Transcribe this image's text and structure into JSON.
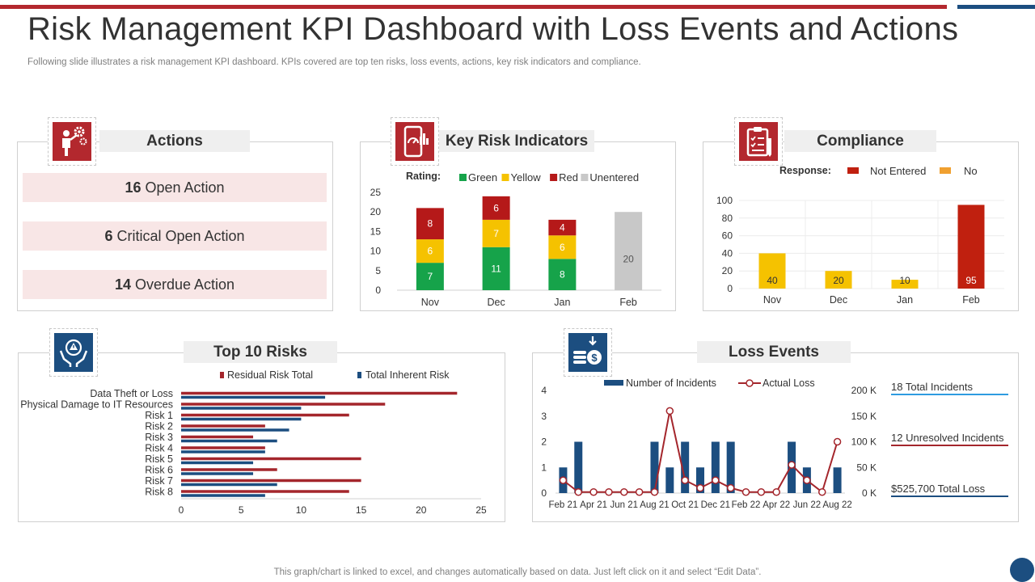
{
  "page": {
    "title": "Risk Management KPI Dashboard with Loss Events and Actions",
    "subtitle": "Following slide illustrates a risk management KPI dashboard. KPIs covered are top ten risks, loss events, actions, key risk indicators and compliance.",
    "footer": "This graph/chart is linked to excel,  and changes automatically based on data. Just left click on it and select “Edit Data”."
  },
  "colors": {
    "red": "#b3282e",
    "navy": "#1c4e80",
    "green": "#16a34a",
    "yellow": "#f5c200",
    "darkred": "#b51919",
    "gray": "#c8c8c8",
    "orange": "#f0a030",
    "pink": "#f8e6e6"
  },
  "actions": {
    "title": "Actions",
    "icon": "person-gear-icon",
    "items": [
      {
        "count": "16",
        "label": "Open Action"
      },
      {
        "count": "6",
        "label": "Critical Open Action"
      },
      {
        "count": "14",
        "label": "Overdue Action"
      }
    ]
  },
  "kri": {
    "title": "Key Risk Indicators",
    "icon": "phone-gauge-icon"
  },
  "compliance": {
    "title": "Compliance",
    "icon": "clipboard-checklist-icon"
  },
  "top_risks": {
    "title": "Top 10 Risks",
    "icon": "hands-warning-icon"
  },
  "loss_events": {
    "title": "Loss Events",
    "icon": "money-coins-icon",
    "kpis": [
      {
        "text": "18 Total Incidents"
      },
      {
        "text": "12 Unresolved  Incidents"
      },
      {
        "text": "$525,700  Total Loss"
      }
    ]
  },
  "chart_data": [
    {
      "id": "key-risk-indicators",
      "type": "bar",
      "stacked": true,
      "legend_title": "Rating:",
      "categories": [
        "Nov",
        "Dec",
        "Jan",
        "Feb"
      ],
      "series": [
        {
          "name": "Green",
          "color": "#16a34a",
          "values": [
            7,
            11,
            8,
            0
          ]
        },
        {
          "name": "Yellow",
          "color": "#f5c200",
          "values": [
            6,
            7,
            6,
            0
          ]
        },
        {
          "name": "Red",
          "color": "#b51919",
          "values": [
            8,
            6,
            4,
            0
          ]
        },
        {
          "name": "Unentered",
          "color": "#c8c8c8",
          "values": [
            0,
            0,
            0,
            20
          ]
        }
      ],
      "yticks": [
        "0",
        "5",
        "10",
        "15",
        "20",
        "25"
      ],
      "ylim": [
        0,
        25
      ]
    },
    {
      "id": "compliance",
      "type": "bar",
      "legend_title": "Response:",
      "legend": [
        {
          "name": "Not Entered",
          "color": "#c0200f"
        },
        {
          "name": "No",
          "color": "#f0a030"
        }
      ],
      "categories": [
        "Nov",
        "Dec",
        "Jan",
        "Feb"
      ],
      "values": [
        40,
        20,
        10,
        95
      ],
      "bar_colors": [
        "#f5c200",
        "#f5c200",
        "#f5c200",
        "#c0200f"
      ],
      "labels": [
        "40",
        "20",
        "10",
        "95"
      ],
      "yticks": [
        "0",
        "20",
        "40",
        "60",
        "80",
        "100"
      ],
      "ylim": [
        0,
        100
      ]
    },
    {
      "id": "top-10-risks",
      "type": "bar",
      "orientation": "horizontal",
      "categories": [
        "Data Theft or Loss",
        "Physical Damage to IT Resources",
        "Risk 1",
        "Risk 2",
        "Risk 3",
        "Risk 4",
        "Risk 5",
        "Risk 6",
        "Risk 7",
        "Risk 8"
      ],
      "series": [
        {
          "name": "Residual Risk Total",
          "color": "#a4262c",
          "values": [
            23,
            17,
            14,
            7,
            6,
            7,
            15,
            8,
            15,
            14
          ]
        },
        {
          "name": "Total Inherent Risk",
          "color": "#1c4e80",
          "values": [
            12,
            10,
            10,
            9,
            8,
            7,
            6,
            6,
            8,
            7
          ]
        }
      ],
      "xticks": [
        "0",
        "5",
        "10",
        "15",
        "20",
        "25"
      ],
      "xlim": [
        0,
        25
      ]
    },
    {
      "id": "loss-events",
      "type": "bar",
      "combo": "bar+line",
      "categories": [
        "Feb 21",
        "Mar 21",
        "Apr 21",
        "May 21",
        "Jun 21",
        "Jul 21",
        "Aug 21",
        "Sep 21",
        "Oct 21",
        "Nov 21",
        "Dec 21",
        "Jan 22",
        "Feb 22",
        "Mar 22",
        "Apr 22",
        "May 22",
        "Jun 22",
        "Jul 22",
        "Aug 22"
      ],
      "xtick_labels": [
        "Feb 21",
        "Apr 21",
        "Jun 21",
        "Aug 21",
        "Oct 21",
        "Dec 21",
        "Feb 22",
        "Apr 22",
        "Jun 22",
        "Aug 22"
      ],
      "series": [
        {
          "name": "Number of Incidents",
          "axis": "left",
          "color": "#1c4e80",
          "values": [
            1,
            2,
            0,
            0,
            0,
            0,
            2,
            1,
            2,
            1,
            2,
            2,
            0,
            0,
            0,
            2,
            1,
            0,
            1
          ]
        },
        {
          "name": "Actual Loss",
          "axis": "right",
          "color": "#a4262c",
          "values": [
            25000,
            2000,
            2000,
            2000,
            2000,
            2000,
            2000,
            160000,
            25000,
            10000,
            25000,
            10000,
            2000,
            2000,
            2000,
            55000,
            25000,
            2000,
            100000
          ]
        }
      ],
      "y_left_ticks": [
        "0",
        "1",
        "2",
        "3",
        "4"
      ],
      "y_left_lim": [
        0,
        4
      ],
      "y_right_ticks": [
        "0 K",
        "50 K",
        "100 K",
        "150 K",
        "200 K"
      ],
      "y_right_lim": [
        0,
        200000
      ]
    }
  ]
}
